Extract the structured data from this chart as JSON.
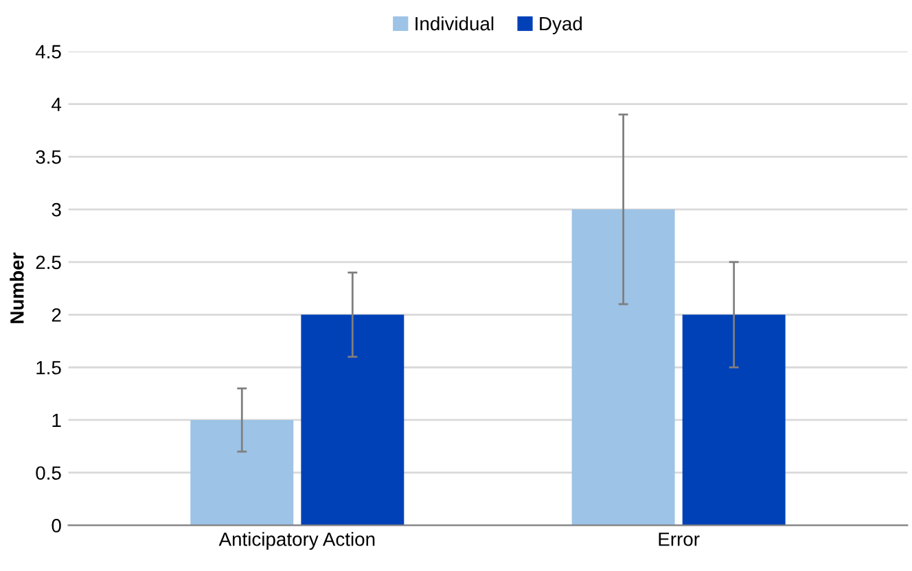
{
  "chart_data": {
    "type": "bar",
    "ylabel": "Number",
    "categories": [
      "Anticipatory Action",
      "Error"
    ],
    "series": [
      {
        "name": "Individual",
        "color": "#9dc3e6",
        "values": [
          1,
          3
        ],
        "errors": [
          0.3,
          0.9
        ]
      },
      {
        "name": "Dyad",
        "color": "#0041b8",
        "values": [
          2,
          2
        ],
        "errors": [
          0.4,
          0.5
        ]
      }
    ],
    "ylim": [
      0,
      4.5
    ],
    "yticks": [
      0,
      0.5,
      1,
      1.5,
      2,
      2.5,
      3,
      3.5,
      4,
      4.5
    ],
    "grid": "y",
    "legend": "top"
  }
}
